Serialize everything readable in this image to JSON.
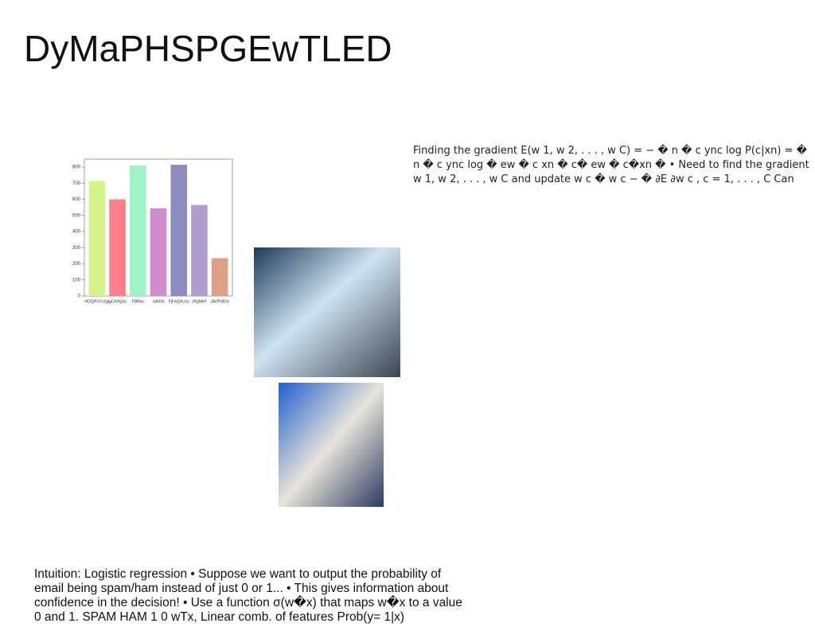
{
  "title": "DyMaPHSPGEwTLED",
  "text_right": "Finding the gradient E(w 1, w 2, . . . , w C) = − � n � c ync log P(c|xn) = � n � c ync log � ew � c xn � c� ew � c�xn � • Need to find the gradient w 1, w 2, . . . , w C and update w c � w c − � ∂E ∂w c , c = 1, . . . , C Can",
  "text_bottom": "Intuition: Logistic regression • Suppose we want to output the probability of email being spam/ham instead of just 0 or 1... • This gives information about confidence in the decision! • Use a function σ(w�x) that maps w�x to a value 0 and 1. SPAM HAM 1 0 wTx, Linear comb. of features Prob(y= 1|x)",
  "chart_data": {
    "type": "bar",
    "categories": [
      "HOQPVYcSjy",
      "qjCKHgSn",
      "FBRkx",
      "raRKN",
      "FjFwQhUsx",
      "zRgMeF",
      "JAVPnBVo"
    ],
    "values": [
      715,
      600,
      810,
      545,
      815,
      565,
      235
    ],
    "colors": [
      "#d4f38a",
      "#ff7f87",
      "#a0f3c4",
      "#d08ad2",
      "#8c8cc0",
      "#b09ccd",
      "#e0a087"
    ],
    "ylim": [
      0,
      850
    ],
    "yticks": [
      0,
      100,
      200,
      300,
      400,
      500,
      600,
      700,
      800
    ]
  }
}
